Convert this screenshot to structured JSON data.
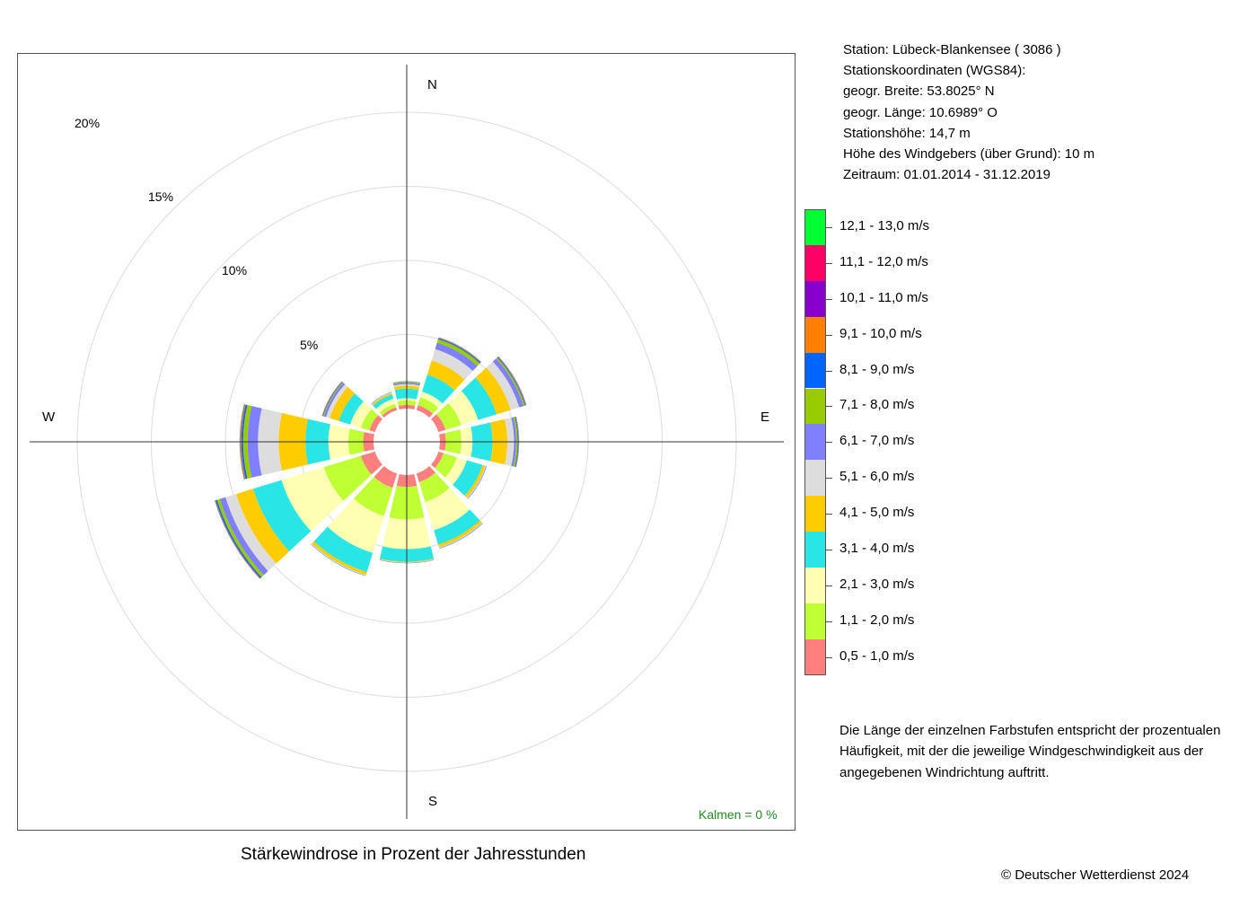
{
  "station": {
    "lines": [
      "Station:  Lübeck-Blankensee  ( 3086 )",
      "Stationskoordinaten (WGS84):",
      "geogr. Breite: 53.8025° N",
      "geogr. Länge: 10.6989° O",
      "Stationshöhe: 14,7 m",
      "Höhe des Windgebers (über Grund): 10 m",
      "Zeitraum: 01.01.2014 - 31.12.2019"
    ]
  },
  "note": "Die Länge der einzelnen Farbstufen entspricht der prozentualen Häufigkeit, mit der die jeweilige Windgeschwindigkeit aus der angegebenen Windrichtung auftritt.",
  "calm": "Kalmen  =  0 %",
  "title": "Stärkewindrose in Prozent der Jahresstunden",
  "copyright": "© Deutscher Wetterdienst  2024",
  "chart_data": {
    "type": "wind-rose (stacked polar bar)",
    "title": "Stärkewindrose in Prozent der Jahresstunden",
    "directions": [
      "N",
      "E",
      "S",
      "W"
    ],
    "direction_labels": [
      "N",
      "E",
      "S",
      "W"
    ],
    "radial_ticks": [
      "5%",
      "10%",
      "15%",
      "20%"
    ],
    "radial_tick_values": [
      5,
      10,
      15,
      20
    ],
    "sector_angles_deg": [
      0,
      30,
      60,
      90,
      120,
      150,
      180,
      210,
      240,
      270,
      300,
      330
    ],
    "speed_classes": [
      {
        "label": "0,5 - 1,0 m/s",
        "color": "#FF7F7F"
      },
      {
        "label": "1,1 - 2,0 m/s",
        "color": "#BFFF33"
      },
      {
        "label": "2,1 - 3,0 m/s",
        "color": "#FFFFB3"
      },
      {
        "label": "3,1 - 4,0 m/s",
        "color": "#2AE5E5"
      },
      {
        "label": "4,1 - 5,0 m/s",
        "color": "#FFCC00"
      },
      {
        "label": "5,1 - 6,0 m/s",
        "color": "#DDDDDD"
      },
      {
        "label": "6,1 - 7,0 m/s",
        "color": "#8080FF"
      },
      {
        "label": "7,1 - 8,0 m/s",
        "color": "#99CC00"
      },
      {
        "label": "8,1 - 9,0 m/s",
        "color": "#0066FF"
      },
      {
        "label": "9,1 - 10,0 m/s",
        "color": "#FF8000"
      },
      {
        "label": "10,1 - 11,0 m/s",
        "color": "#8800CC"
      },
      {
        "label": "11,1 - 12,0 m/s",
        "color": "#FF0066"
      },
      {
        "label": "12,1 - 13,0 m/s",
        "color": "#00FF33"
      }
    ],
    "cumulative_percent_by_sector": [
      [
        0.25,
        0.55,
        0.7,
        1.35,
        1.55,
        1.65,
        1.75,
        1.8,
        1.82,
        1.83,
        1.84,
        1.85,
        1.86
      ],
      [
        0.35,
        0.9,
        1.3,
        2.5,
        3.5,
        4.3,
        4.75,
        5.0,
        5.07,
        5.1,
        5.12,
        5.13,
        5.14
      ],
      [
        0.5,
        1.6,
        2.8,
        4.1,
        5.1,
        5.7,
        6.0,
        6.1,
        6.15,
        6.18,
        6.2,
        6.21,
        6.22
      ],
      [
        0.4,
        1.45,
        2.2,
        3.55,
        4.55,
        5.0,
        5.15,
        5.25,
        5.3,
        5.32,
        5.33,
        5.34,
        5.35
      ],
      [
        0.35,
        1.3,
        2.0,
        3.1,
        3.3,
        3.35,
        3.38,
        3.39,
        3.4,
        3.4,
        3.4,
        3.4,
        3.4
      ],
      [
        0.6,
        2.0,
        4.0,
        5.0,
        5.2,
        5.25,
        5.28,
        5.29,
        5.3,
        5.3,
        5.3,
        5.3,
        5.3
      ],
      [
        0.8,
        3.0,
        5.0,
        5.85,
        5.9,
        5.92,
        5.93,
        5.94,
        5.95,
        5.95,
        5.95,
        5.95,
        5.95
      ],
      [
        1.0,
        3.0,
        5.6,
        6.95,
        7.15,
        7.2,
        7.22,
        7.23,
        7.24,
        7.24,
        7.24,
        7.24,
        7.24
      ],
      [
        1.0,
        3.6,
        6.6,
        8.6,
        9.8,
        10.55,
        10.95,
        11.15,
        11.25,
        11.28,
        11.3,
        11.31,
        11.32
      ],
      [
        0.7,
        1.7,
        3.05,
        4.6,
        6.4,
        7.8,
        8.5,
        8.8,
        8.92,
        8.98,
        9.0,
        9.02,
        9.04
      ],
      [
        0.4,
        1.0,
        1.75,
        2.55,
        3.2,
        3.45,
        3.6,
        3.66,
        3.7,
        3.72,
        3.73,
        3.74,
        3.75
      ],
      [
        0.2,
        0.45,
        0.8,
        1.1,
        1.2,
        1.24,
        1.26,
        1.27,
        1.28,
        1.28,
        1.28,
        1.28,
        1.28
      ]
    ],
    "calm_percent": 0
  }
}
